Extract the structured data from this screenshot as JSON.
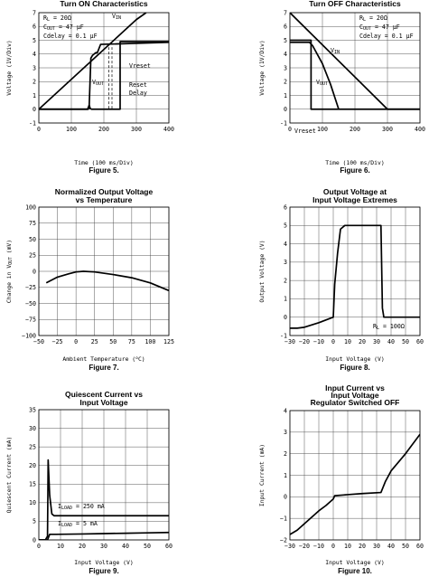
{
  "chart_data": [
    {
      "id": "fig5",
      "type": "line",
      "title": "Turn ON Characteristics",
      "figure_label": "Figure 5.",
      "xlabel": "Time (100 ms/Div)",
      "ylabel": "Voltage (1V/Div)",
      "xlim": [
        0,
        400
      ],
      "ylim": [
        -1,
        7
      ],
      "xticks": [
        0,
        100,
        200,
        300,
        400
      ],
      "yticks": [
        -1,
        0,
        1,
        2,
        3,
        4,
        5,
        6,
        7
      ],
      "grid": true,
      "annotations": [
        "R_L = 20Ω",
        "C_OUT = 47 µF",
        "Cdelay = 0.1 µF",
        "V_IN",
        "Vreset",
        "V_OUT",
        "Reset",
        "Delay"
      ],
      "series": [
        {
          "name": "V_IN",
          "x": [
            0,
            300,
            330
          ],
          "y": [
            0,
            6.5,
            7
          ]
        },
        {
          "name": "V_OUT",
          "x": [
            0,
            150,
            155,
            160,
            165,
            175,
            180,
            190,
            400
          ],
          "y": [
            0,
            0,
            0.3,
            3.7,
            3.9,
            4.1,
            4.1,
            4.7,
            4.85
          ]
        },
        {
          "name": "Reset",
          "x": [
            0,
            152,
            155,
            158,
            162,
            250,
            250,
            400
          ],
          "y": [
            0,
            0,
            0.3,
            0.05,
            0,
            0,
            4.9,
            4.9
          ]
        }
      ]
    },
    {
      "id": "fig6",
      "type": "line",
      "title": "Turn OFF Characteristics",
      "figure_label": "Figure 6.",
      "xlabel": "Time (100 ms/Div)",
      "ylabel": "Voltage (1V/Div)",
      "xlim": [
        0,
        400
      ],
      "ylim": [
        -1,
        7
      ],
      "xticks": [
        0,
        100,
        200,
        300,
        400
      ],
      "yticks": [
        -1,
        0,
        1,
        2,
        3,
        4,
        5,
        6,
        7
      ],
      "grid": true,
      "annotations": [
        "R_L = 20Ω",
        "C_OUT = 47 µF",
        "Cdelay = 0.1 µF",
        "V_IN",
        "V_OUT",
        "Vreset"
      ],
      "series": [
        {
          "name": "V_IN",
          "x": [
            0,
            300,
            400
          ],
          "y": [
            7,
            0,
            0
          ]
        },
        {
          "name": "V_OUT",
          "x": [
            0,
            60,
            70,
            100,
            125,
            150
          ],
          "y": [
            4.85,
            4.85,
            4.6,
            3.3,
            1.8,
            0
          ]
        },
        {
          "name": "Reset",
          "x": [
            0,
            65,
            65,
            400
          ],
          "y": [
            5,
            5,
            0,
            0
          ]
        }
      ]
    },
    {
      "id": "fig7",
      "type": "line",
      "title": "Normalized Output Voltage vs Temperature",
      "title_lines": [
        "Normalized Output Voltage",
        "vs Temperature"
      ],
      "figure_label": "Figure 7.",
      "xlabel": "Ambient Temperature (°C)",
      "ylabel": "Change in V_OUT (mV)",
      "xlim": [
        -50,
        125
      ],
      "ylim": [
        -100,
        100
      ],
      "xticks": [
        -50,
        -25,
        0,
        25,
        50,
        75,
        100,
        125
      ],
      "xtick_labels": [
        "−50",
        "−25",
        "0",
        "25",
        "50",
        "75",
        "100",
        "125"
      ],
      "yticks": [
        -100,
        -75,
        -50,
        -25,
        0,
        25,
        50,
        75,
        100
      ],
      "ytick_labels": [
        "−100",
        "−75",
        "−50",
        "−25",
        "0",
        "25",
        "50",
        "75",
        "100"
      ],
      "grid": true,
      "series": [
        {
          "x": [
            -40,
            -25,
            -10,
            0,
            10,
            25,
            50,
            75,
            100,
            125
          ],
          "y": [
            -18,
            -9,
            -4,
            -1,
            0,
            -1,
            -5,
            -10,
            -18,
            -30
          ]
        }
      ]
    },
    {
      "id": "fig8",
      "type": "line",
      "title": "Output Voltage at Input Voltage Extremes",
      "title_lines": [
        "Output Voltage at",
        "Input Voltage Extremes"
      ],
      "figure_label": "Figure 8.",
      "xlabel": "Input Voltage (V)",
      "ylabel": "Output Voltage (V)",
      "xlim": [
        -30,
        60
      ],
      "ylim": [
        -1,
        6
      ],
      "xticks": [
        -30,
        -20,
        -10,
        0,
        10,
        20,
        30,
        40,
        50,
        60
      ],
      "xtick_labels": [
        "−30",
        "−20",
        "−10",
        "0",
        "10",
        "20",
        "30",
        "40",
        "50",
        "60"
      ],
      "yticks": [
        -1,
        0,
        1,
        2,
        3,
        4,
        5,
        6
      ],
      "grid": true,
      "annotations": [
        "R_L = 100Ω"
      ],
      "series": [
        {
          "x": [
            -30,
            -25,
            -20,
            -10,
            0,
            1,
            3,
            5,
            8,
            15,
            25,
            33,
            34,
            35,
            60
          ],
          "y": [
            -0.6,
            -0.6,
            -0.55,
            -0.3,
            0,
            1.8,
            3.5,
            4.8,
            5,
            5,
            5,
            5,
            0.5,
            0,
            0
          ]
        }
      ]
    },
    {
      "id": "fig9",
      "type": "line",
      "title": "Quiescent Current vs Input Voltage",
      "title_lines": [
        "Quiescent Current vs",
        "Input Voltage"
      ],
      "figure_label": "Figure 9.",
      "xlabel": "Input Voltage (V)",
      "ylabel": "Quiescent Current (mA)",
      "xlim": [
        0,
        60
      ],
      "ylim": [
        0,
        35
      ],
      "xticks": [
        0,
        10,
        20,
        30,
        40,
        50,
        60
      ],
      "yticks": [
        0,
        5,
        10,
        15,
        20,
        25,
        30,
        35
      ],
      "grid": true,
      "annotations": [
        "I_LOAD = 250 mA",
        "I_LOAD = 5 mA"
      ],
      "series": [
        {
          "name": "I_LOAD = 250 mA",
          "x": [
            0,
            3,
            4,
            4.3,
            5,
            6,
            7,
            60
          ],
          "y": [
            0,
            0,
            1,
            21.5,
            12,
            7,
            6.5,
            6.5
          ]
        },
        {
          "name": "I_LOAD = 5 mA",
          "x": [
            0,
            4,
            5,
            8,
            20,
            30,
            40,
            50,
            60
          ],
          "y": [
            0,
            0,
            1.5,
            1.5,
            1.6,
            1.7,
            1.8,
            1.9,
            2
          ]
        }
      ]
    },
    {
      "id": "fig10",
      "type": "line",
      "title": "Input Current vs Input Voltage Regulator Switched OFF",
      "title_lines": [
        "Input Current vs",
        "Input Voltage",
        "Regulator Switched OFF"
      ],
      "figure_label": "Figure 10.",
      "xlabel": "Input Voltage (V)",
      "ylabel": "Input Current (mA)",
      "xlim": [
        -30,
        60
      ],
      "ylim": [
        -2,
        4
      ],
      "xticks": [
        -30,
        -20,
        -10,
        0,
        10,
        20,
        30,
        40,
        50,
        60
      ],
      "xtick_labels": [
        "−30",
        "−20",
        "−10",
        "0",
        "10",
        "20",
        "30",
        "40",
        "50",
        "60"
      ],
      "yticks": [
        -2,
        -1,
        0,
        1,
        2,
        3,
        4
      ],
      "ytick_labels": [
        "−2",
        "−1",
        "0",
        "1",
        "2",
        "3",
        "4"
      ],
      "grid": true,
      "series": [
        {
          "x": [
            -30,
            -25,
            -20,
            -10,
            -5,
            0,
            1,
            10,
            20,
            33,
            36,
            40,
            50,
            60
          ],
          "y": [
            -1.75,
            -1.55,
            -1.25,
            -0.65,
            -0.4,
            -0.1,
            0.05,
            0.1,
            0.15,
            0.2,
            0.7,
            1.2,
            2,
            2.9
          ]
        }
      ]
    }
  ]
}
